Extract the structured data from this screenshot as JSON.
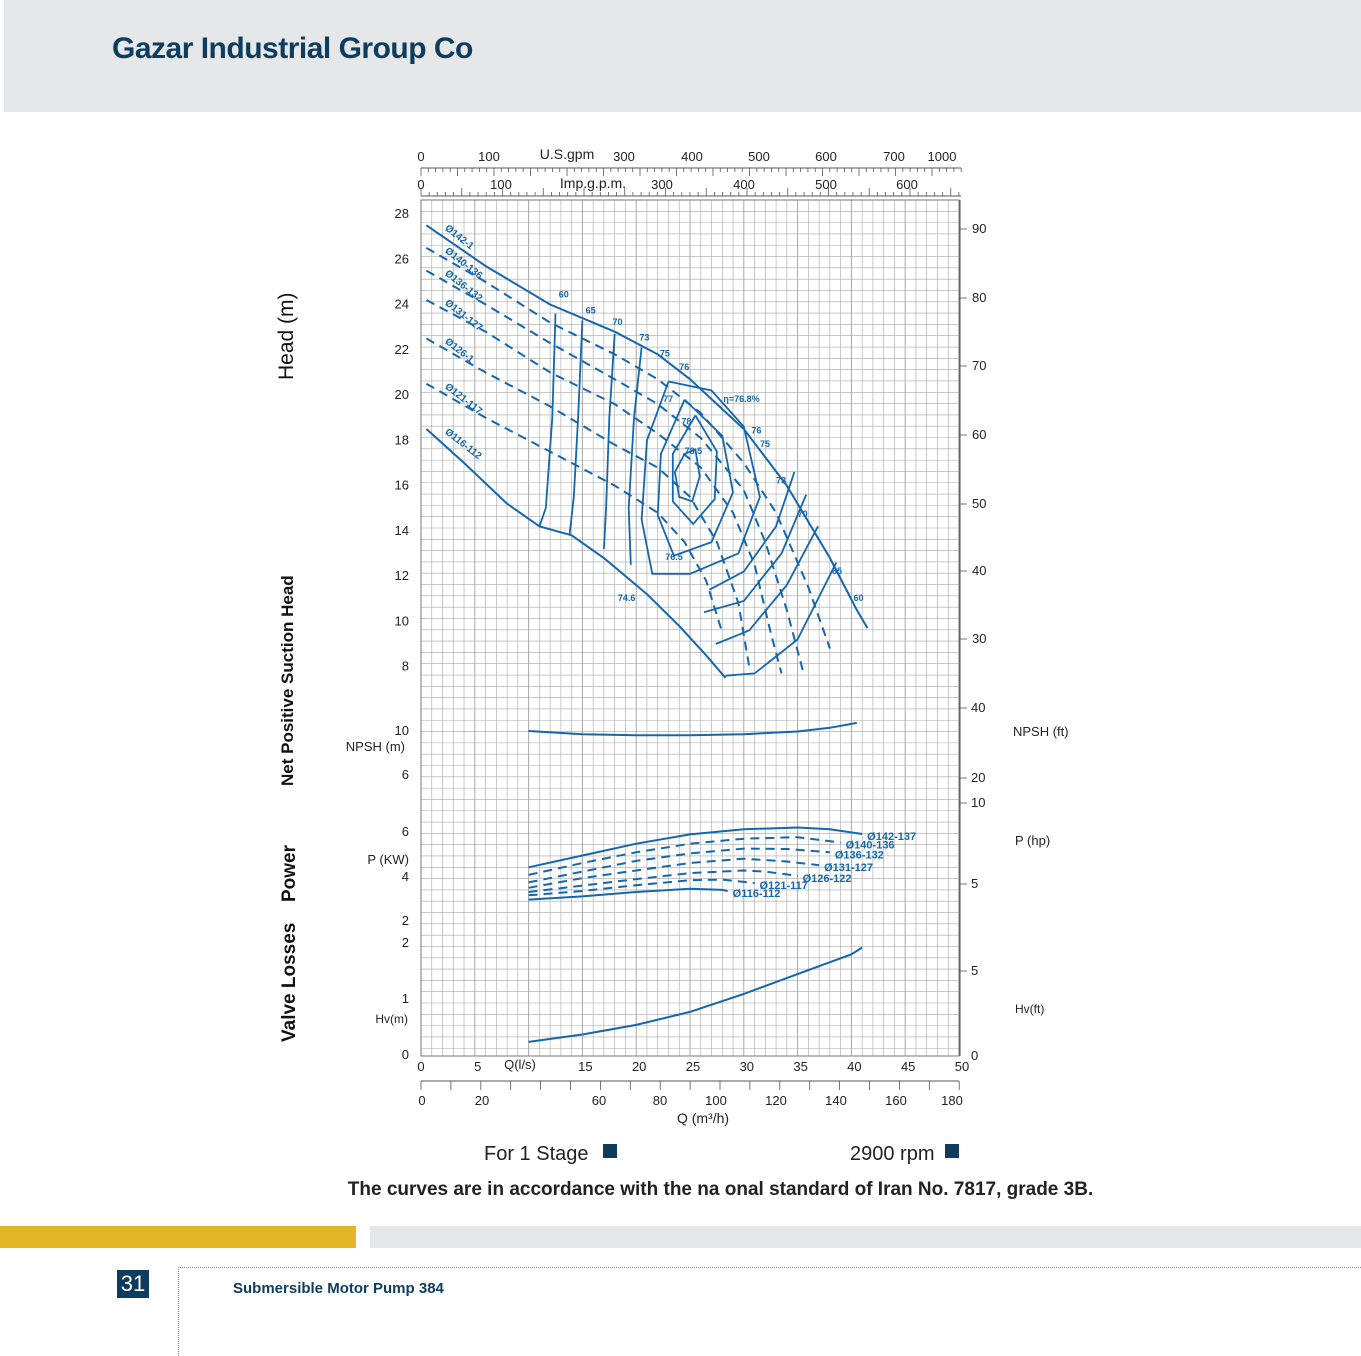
{
  "header": {
    "company": "Gazar Industrial Group Co"
  },
  "footer": {
    "page_number": "31",
    "title": "Submersible Motor Pump 384",
    "stage": "For 1 Stage",
    "rpm": "2900 rpm",
    "standard_note": "The curves are in accordance with the na onal standard of Iran No. 7817, grade 3B."
  },
  "side_labels": {
    "head": "Head (m)",
    "npsh": "Net Positive Suction Head",
    "power": "Power",
    "valve": "Valve Losses"
  },
  "colors": {
    "curve": "#1466ad",
    "grid": "#a8a8a8",
    "text": "#222222",
    "brand": "#0d3c5e",
    "gold": "#e3b628"
  },
  "chart_data": {
    "type": "line",
    "x": {
      "label": "Q(l/s)",
      "range": [
        0,
        50
      ],
      "ticks": [
        0,
        5,
        15,
        20,
        25,
        30,
        35,
        40,
        45,
        50
      ]
    },
    "x_m3h": {
      "label": "Q (m³/h)",
      "ticks": [
        0,
        20,
        60,
        80,
        100,
        120,
        140,
        160,
        180
      ]
    },
    "x_usgpm": {
      "label": "U.S.gpm",
      "ticks": [
        0,
        100,
        300,
        400,
        500,
        600,
        700,
        1000
      ]
    },
    "x_impgpm": {
      "label": "Imp.g.p.m.",
      "ticks": [
        0,
        100,
        300,
        400,
        500,
        600
      ]
    },
    "head_axis": {
      "unit": "m",
      "ticks": [
        28,
        26,
        24,
        22,
        20,
        18,
        16,
        14,
        12,
        10,
        8
      ],
      "ft_ticks": [
        90,
        80,
        70,
        60,
        50,
        40,
        30
      ]
    },
    "npsh_axis": {
      "label": "NPSH (m)",
      "ticks": [
        10,
        6
      ],
      "ft_label": "NPSH (ft)",
      "ft_ticks": [
        40,
        20,
        10
      ]
    },
    "power_axis": {
      "label": "P (KW)",
      "ticks": [
        6,
        4,
        2
      ],
      "hp_label": "P (hp)",
      "hp_ticks": [
        5
      ]
    },
    "valve_axis": {
      "label": "Hv(m)",
      "ticks": [
        2,
        1,
        0
      ],
      "ft_label": "Hv(ft)",
      "ft_ticks": [
        5,
        0
      ]
    },
    "head_curves": [
      {
        "name": "Ø142-1",
        "style": "solid",
        "points": [
          [
            0.5,
            27.5
          ],
          [
            6,
            25.7
          ],
          [
            12,
            24.0
          ],
          [
            18,
            22.8
          ],
          [
            22,
            21.8
          ],
          [
            25,
            20.7
          ],
          [
            30,
            18.5
          ],
          [
            34,
            16.0
          ],
          [
            38,
            12.8
          ],
          [
            40.5,
            10.5
          ],
          [
            41.5,
            9.7
          ]
        ]
      },
      {
        "name": "Ø140-136",
        "style": "dashed",
        "points": [
          [
            0.5,
            26.5
          ],
          [
            6,
            25.0
          ],
          [
            12,
            23.2
          ],
          [
            18,
            21.8
          ],
          [
            22,
            20.7
          ],
          [
            26,
            19.2
          ],
          [
            30,
            17.0
          ],
          [
            33,
            14.8
          ],
          [
            36,
            11.5
          ],
          [
            38,
            8.8
          ]
        ]
      },
      {
        "name": "Ø136-132",
        "style": "dashed",
        "points": [
          [
            0.5,
            25.5
          ],
          [
            6,
            24.0
          ],
          [
            12,
            22.3
          ],
          [
            18,
            20.7
          ],
          [
            22,
            19.6
          ],
          [
            26,
            18.1
          ],
          [
            30,
            15.8
          ],
          [
            32,
            13.5
          ],
          [
            34,
            10.5
          ],
          [
            35.5,
            7.8
          ]
        ]
      },
      {
        "name": "Ø131-127",
        "style": "dashed",
        "points": [
          [
            0.5,
            24.2
          ],
          [
            6,
            22.8
          ],
          [
            12,
            21.0
          ],
          [
            18,
            19.6
          ],
          [
            22,
            18.3
          ],
          [
            26,
            16.8
          ],
          [
            29,
            14.8
          ],
          [
            31,
            12.5
          ],
          [
            32.5,
            9.5
          ],
          [
            33.5,
            7.7
          ]
        ]
      },
      {
        "name": "Ø126-1",
        "style": "dashed",
        "points": [
          [
            0.5,
            22.5
          ],
          [
            6,
            21.0
          ],
          [
            12,
            19.5
          ],
          [
            18,
            17.8
          ],
          [
            22,
            16.8
          ],
          [
            25,
            15.5
          ],
          [
            27.5,
            13.5
          ],
          [
            29.5,
            10.8
          ],
          [
            30.5,
            8.0
          ]
        ]
      },
      {
        "name": "Ø121-117",
        "style": "dashed",
        "points": [
          [
            0.5,
            20.5
          ],
          [
            6,
            19.0
          ],
          [
            12,
            17.5
          ],
          [
            18,
            16.0
          ],
          [
            22,
            14.8
          ],
          [
            24.5,
            13.5
          ],
          [
            26.5,
            11.8
          ],
          [
            28,
            9.5
          ]
        ]
      },
      {
        "name": "Ø116-112",
        "style": "solid",
        "points": [
          [
            0.5,
            18.5
          ],
          [
            4,
            17.0
          ],
          [
            8,
            15.2
          ],
          [
            11,
            14.2
          ],
          [
            14,
            13.8
          ],
          [
            17,
            12.8
          ],
          [
            21,
            11.2
          ],
          [
            24,
            9.8
          ],
          [
            26.5,
            8.5
          ],
          [
            28.3,
            7.5
          ]
        ]
      }
    ],
    "efficiency_labels": [
      "60",
      "65",
      "70",
      "73",
      "75",
      "76",
      "77",
      "78",
      "78.5",
      "76.5",
      "74.6",
      "η=76.8%"
    ],
    "npsh_curve": {
      "points": [
        [
          10,
          10.0
        ],
        [
          15,
          9.7
        ],
        [
          20,
          9.6
        ],
        [
          25,
          9.6
        ],
        [
          30,
          9.7
        ],
        [
          35,
          9.95
        ],
        [
          38,
          10.3
        ],
        [
          40.5,
          10.75
        ]
      ]
    },
    "power_curves": [
      {
        "name": "Ø142-137",
        "style": "solid",
        "points": [
          [
            10,
            4.45
          ],
          [
            15,
            5.0
          ],
          [
            20,
            5.55
          ],
          [
            25,
            5.98
          ],
          [
            30,
            6.22
          ],
          [
            35,
            6.3
          ],
          [
            38,
            6.22
          ],
          [
            41,
            6.0
          ]
        ]
      },
      {
        "name": "Ø140-136",
        "style": "dashed",
        "points": [
          [
            10,
            4.1
          ],
          [
            15,
            4.65
          ],
          [
            20,
            5.15
          ],
          [
            25,
            5.55
          ],
          [
            30,
            5.78
          ],
          [
            35,
            5.85
          ],
          [
            39,
            5.6
          ]
        ]
      },
      {
        "name": "Ø136-132",
        "style": "dashed",
        "points": [
          [
            10,
            3.75
          ],
          [
            15,
            4.25
          ],
          [
            20,
            4.75
          ],
          [
            25,
            5.1
          ],
          [
            30,
            5.32
          ],
          [
            34,
            5.3
          ],
          [
            38,
            5.15
          ]
        ]
      },
      {
        "name": "Ø131-127",
        "style": "dashed",
        "points": [
          [
            10,
            3.5
          ],
          [
            15,
            3.95
          ],
          [
            20,
            4.3
          ],
          [
            25,
            4.65
          ],
          [
            30,
            4.85
          ],
          [
            34,
            4.72
          ],
          [
            37,
            4.55
          ]
        ]
      },
      {
        "name": "Ø126-122",
        "style": "dashed",
        "points": [
          [
            10,
            3.3
          ],
          [
            15,
            3.6
          ],
          [
            20,
            3.9
          ],
          [
            25,
            4.18
          ],
          [
            30,
            4.3
          ],
          [
            32,
            4.25
          ],
          [
            35,
            4.05
          ]
        ]
      },
      {
        "name": "Ø121-117",
        "style": "dashed",
        "points": [
          [
            10,
            3.15
          ],
          [
            15,
            3.35
          ],
          [
            20,
            3.62
          ],
          [
            25,
            3.85
          ],
          [
            28,
            3.88
          ],
          [
            31,
            3.72
          ]
        ]
      },
      {
        "name": "Ø116-112",
        "style": "solid",
        "points": [
          [
            10,
            2.95
          ],
          [
            15,
            3.1
          ],
          [
            20,
            3.3
          ],
          [
            25,
            3.45
          ],
          [
            28,
            3.4
          ],
          [
            28.5,
            3.35
          ]
        ]
      }
    ],
    "valve_curve": {
      "points": [
        [
          10,
          0.25
        ],
        [
          15,
          0.38
        ],
        [
          20,
          0.55
        ],
        [
          25,
          0.78
        ],
        [
          30,
          1.1
        ],
        [
          35,
          1.45
        ],
        [
          40,
          1.8
        ],
        [
          41,
          1.92
        ]
      ]
    }
  }
}
